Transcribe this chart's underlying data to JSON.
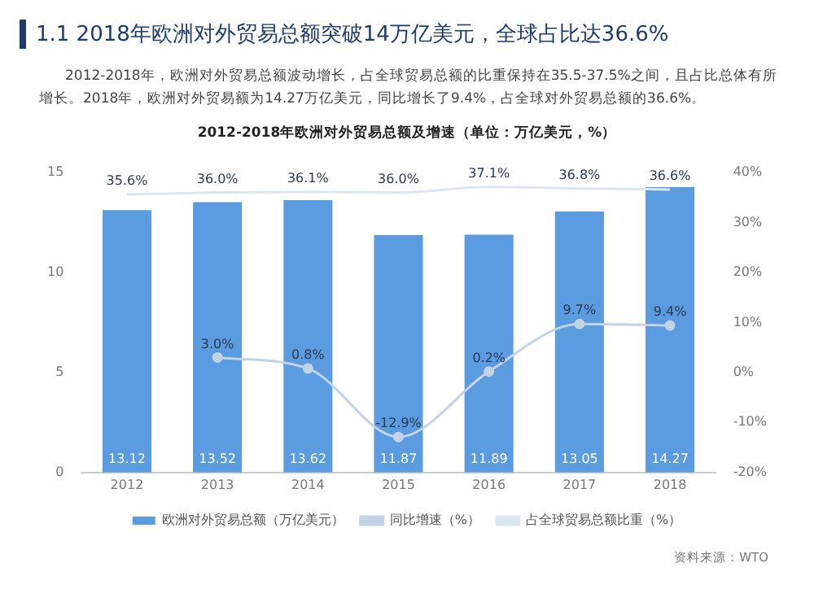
{
  "chart_data": {
    "type": "bar",
    "title": "1.1  2018年欧洲对外贸易总额突破14万亿美元，全球占比达36.6%",
    "subtitle": "2012-2018年，欧洲对外贸易总额波动增长，占全球贸易总额的比重保持在35.5-37.5%之间，且占比总体有所增长。2018年，欧洲对外贸易额为14.27万亿美元，同比增长了9.4%，占全球对外贸易总额的36.6%。",
    "annotations": [
      "2012-2018年欧洲对外贸易总额及增速（单位：万亿美元，%）",
      "资料来源：WTO"
    ],
    "categories": [
      "2012",
      "2013",
      "2014",
      "2015",
      "2016",
      "2017",
      "2018"
    ],
    "series": [
      {
        "name": "欧洲对外贸易总额（万亿美元）",
        "color": "#5b9be0",
        "values": [
          13.12,
          13.52,
          13.62,
          11.87,
          11.89,
          13.05,
          14.27
        ],
        "value_labels": [
          "13.12",
          "13.52",
          "13.62",
          "11.87",
          "11.89",
          "13.05",
          "14.27"
        ]
      },
      {
        "name": "同比增速（%）",
        "type": "line",
        "axis": "y2",
        "color": "#c3d3e6",
        "marker": "circle",
        "values": [
          null,
          3.0,
          0.8,
          -12.9,
          0.2,
          9.7,
          9.4
        ],
        "value_labels": [
          null,
          "3.0%",
          "0.8%",
          "-12.9%",
          "0.2%",
          "9.7%",
          "9.4%"
        ]
      },
      {
        "name": "占全球贸易总额比重（%）",
        "type": "line",
        "axis": "y2",
        "color": "#dce6f0",
        "marker": "none",
        "values": [
          35.6,
          36.0,
          36.1,
          36.0,
          37.1,
          36.8,
          36.6
        ],
        "value_labels": [
          "35.6%",
          "36.0%",
          "36.1%",
          "36.0%",
          "37.1%",
          "36.8%",
          "36.6%"
        ]
      }
    ],
    "ylim": [
      0,
      15
    ],
    "yticks": [
      0,
      5,
      10,
      15
    ],
    "y2lim": [
      -20,
      40
    ],
    "y2ticks": [
      {
        "value": -20,
        "label": "-20%"
      },
      {
        "value": -10,
        "label": "-10%"
      },
      {
        "value": 0,
        "label": "0%"
      },
      {
        "value": 10,
        "label": "10%"
      },
      {
        "value": 20,
        "label": "20%"
      },
      {
        "value": 30,
        "label": "30%"
      },
      {
        "value": 40,
        "label": "40%"
      }
    ],
    "grid": false,
    "legend": "bottom"
  }
}
